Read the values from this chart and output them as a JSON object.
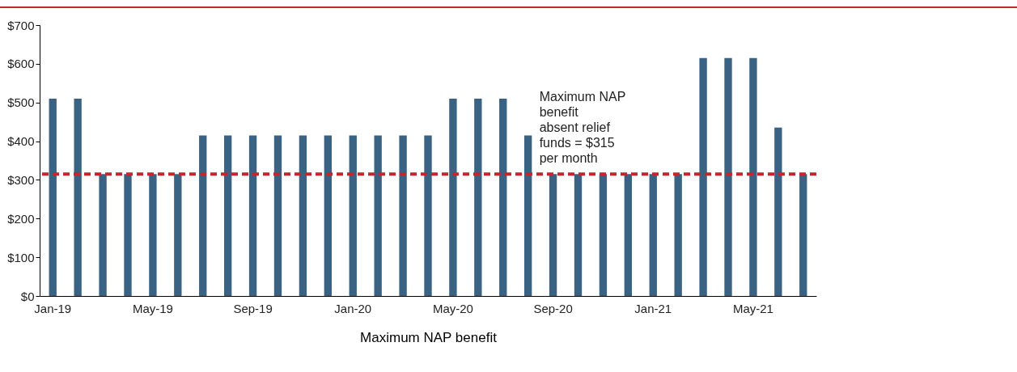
{
  "chart_data": {
    "type": "bar",
    "xlabel": "Maximum NAP benefit",
    "categories": [
      "Jan-19",
      null,
      null,
      null,
      "May-19",
      null,
      null,
      null,
      "Sep-19",
      null,
      null,
      null,
      "Jan-20",
      null,
      null,
      null,
      "May-20",
      null,
      null,
      null,
      "Sep-20",
      null,
      null,
      null,
      "Jan-21",
      null,
      null,
      null,
      "May-21",
      null,
      null
    ],
    "values": [
      510,
      510,
      315,
      315,
      315,
      315,
      415,
      415,
      415,
      415,
      415,
      415,
      415,
      415,
      415,
      415,
      510,
      510,
      510,
      415,
      315,
      315,
      315,
      315,
      315,
      315,
      615,
      615,
      615,
      435,
      315
    ],
    "color": "#3a6282",
    "ylim": [
      0,
      700
    ],
    "yticks": [
      {
        "value": 0,
        "label": "$0"
      },
      {
        "value": 100,
        "label": "$100"
      },
      {
        "value": 200,
        "label": "$200"
      },
      {
        "value": 300,
        "label": "$300"
      },
      {
        "value": 400,
        "label": "$400"
      },
      {
        "value": 500,
        "label": "$500"
      },
      {
        "value": 600,
        "label": "$600"
      },
      {
        "value": 700,
        "label": "$700"
      }
    ],
    "grid": false,
    "ref_lines": [
      {
        "axis": "y",
        "value": 315,
        "label": "Maximum NAP benefit absent relief funds = $315 per month",
        "color": "#c0282d",
        "line_style": "dashed"
      }
    ]
  }
}
